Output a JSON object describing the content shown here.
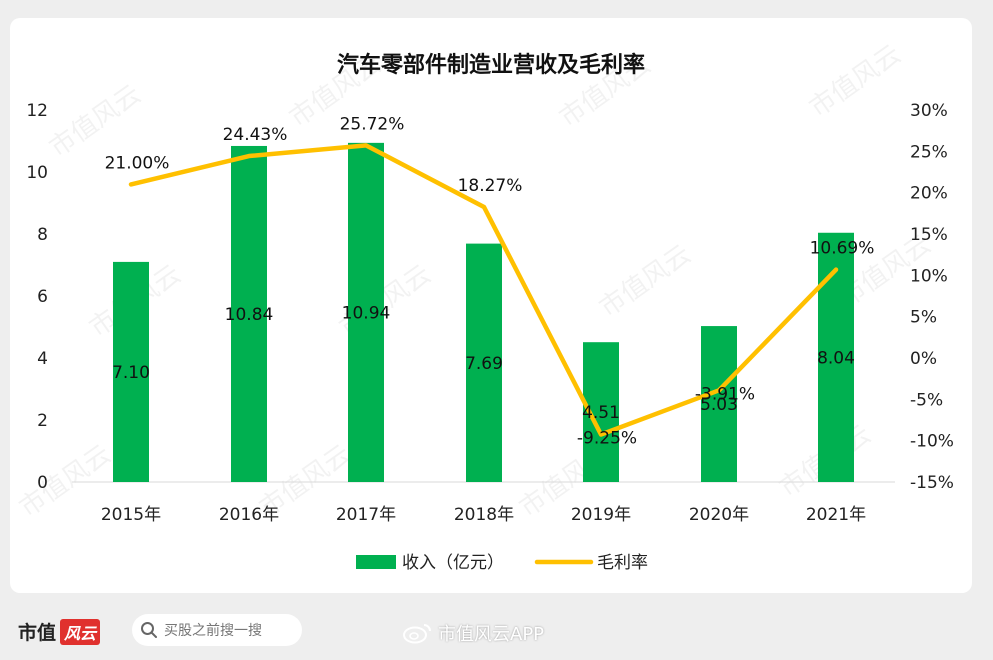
{
  "chart_data": {
    "type": "bar+line",
    "title": "汽车零部件制造业营收及毛利率",
    "categories": [
      "2015年",
      "2016年",
      "2017年",
      "2018年",
      "2019年",
      "2020年",
      "2021年"
    ],
    "series": [
      {
        "name": "收入（亿元）",
        "type": "bar",
        "axis": "left",
        "values": [
          7.1,
          10.84,
          10.94,
          7.69,
          4.51,
          5.03,
          8.04
        ],
        "labels": [
          "7.10",
          "10.84",
          "10.94",
          "7.69",
          "4.51",
          "5.03",
          "8.04"
        ]
      },
      {
        "name": "毛利率",
        "type": "line",
        "axis": "right",
        "values": [
          21.0,
          24.43,
          25.72,
          18.27,
          -9.25,
          -3.91,
          10.69
        ],
        "labels": [
          "21.00%",
          "24.43%",
          "25.72%",
          "18.27%",
          "-9.25%",
          "-3.91%",
          "10.69%"
        ]
      }
    ],
    "y_left": {
      "range": [
        0,
        12
      ],
      "ticks": [
        "0",
        "2",
        "4",
        "6",
        "8",
        "10",
        "12"
      ]
    },
    "y_right": {
      "range": [
        -15,
        30
      ],
      "ticks": [
        "-15%",
        "-10%",
        "-5%",
        "0%",
        "5%",
        "10%",
        "15%",
        "20%",
        "25%",
        "30%"
      ]
    },
    "grid": false,
    "legend": "bottom",
    "colors": {
      "bar": "#00b050",
      "line": "#ffc000"
    }
  },
  "watermark": "市值风云",
  "footer": {
    "brand": "市值",
    "brand_mark": "风云",
    "search_placeholder": "买股之前搜一搜",
    "app_label": "市值风云APP"
  }
}
